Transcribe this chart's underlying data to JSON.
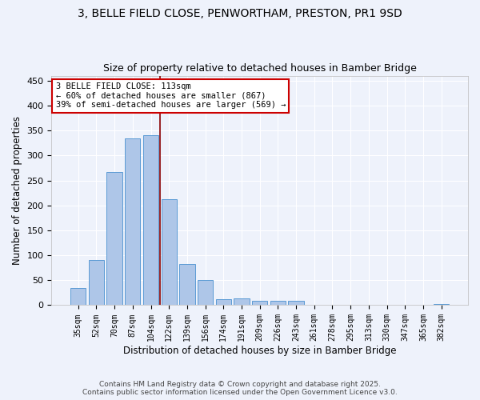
{
  "title1": "3, BELLE FIELD CLOSE, PENWORTHAM, PRESTON, PR1 9SD",
  "title2": "Size of property relative to detached houses in Bamber Bridge",
  "xlabel": "Distribution of detached houses by size in Bamber Bridge",
  "ylabel": "Number of detached properties",
  "bar_labels": [
    "35sqm",
    "52sqm",
    "70sqm",
    "87sqm",
    "104sqm",
    "122sqm",
    "139sqm",
    "156sqm",
    "174sqm",
    "191sqm",
    "209sqm",
    "226sqm",
    "243sqm",
    "261sqm",
    "278sqm",
    "295sqm",
    "313sqm",
    "330sqm",
    "347sqm",
    "365sqm",
    "382sqm"
  ],
  "bar_values": [
    35,
    91,
    267,
    335,
    340,
    212,
    82,
    51,
    12,
    14,
    9,
    8,
    8,
    0,
    0,
    0,
    0,
    0,
    0,
    0,
    3
  ],
  "bar_color": "#aec6e8",
  "bar_edge_color": "#5b9bd5",
  "vline_x": 4.5,
  "vline_color": "#8b0000",
  "annotation_text": "3 BELLE FIELD CLOSE: 113sqm\n← 60% of detached houses are smaller (867)\n39% of semi-detached houses are larger (569) →",
  "annotation_box_color": "white",
  "annotation_box_edge": "#cc0000",
  "ylim": [
    0,
    460
  ],
  "yticks": [
    0,
    50,
    100,
    150,
    200,
    250,
    300,
    350,
    400,
    450
  ],
  "bg_color": "#eef2fb",
  "footer": "Contains HM Land Registry data © Crown copyright and database right 2025.\nContains public sector information licensed under the Open Government Licence v3.0."
}
